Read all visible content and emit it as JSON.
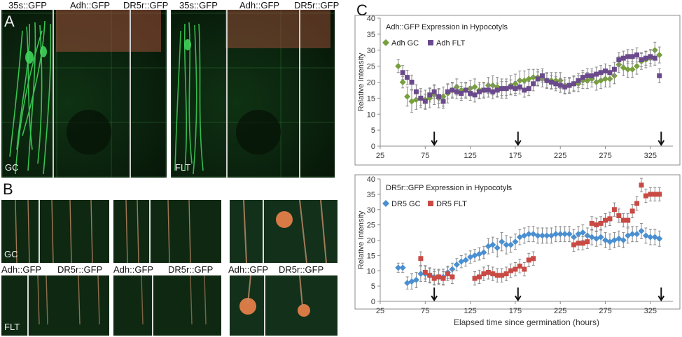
{
  "panelA": {
    "letter": "A",
    "labels": [
      "35s::GFP",
      "Adh::GFP",
      "DR5r::GFP",
      "35s::GFP",
      "Adh::GFP",
      "DR5r::GFP"
    ],
    "tag_left": "GC",
    "tag_right": "FLT"
  },
  "panelB": {
    "letter": "B",
    "tag_gc": "GC",
    "tag_flt": "FLT",
    "labels": [
      "Adh::GFP",
      "DR5r::GFP",
      "Adh::GFP",
      "DR5r::GFP",
      "Adh::GFP",
      "DR5r::GFP"
    ]
  },
  "panelC": {
    "letter": "C"
  },
  "chart_data": [
    {
      "type": "scatter",
      "title": "Adh::GFP Expression in Hypocotyls",
      "ylabel": "Relative Intensity",
      "xlabel": "",
      "xlim": [
        25,
        350
      ],
      "ylim": [
        0,
        40
      ],
      "xticks": [
        25,
        75,
        125,
        175,
        225,
        275,
        325
      ],
      "yticks": [
        0,
        5,
        10,
        15,
        20,
        25,
        30,
        35,
        40
      ],
      "arrows_x": [
        85,
        178,
        337
      ],
      "legend": "top-left",
      "series": [
        {
          "name": "Adh GC",
          "color": "#77a03c",
          "marker": "diamond",
          "x": [
            45,
            50,
            55,
            60,
            65,
            70,
            75,
            80,
            85,
            90,
            95,
            100,
            105,
            110,
            115,
            120,
            125,
            130,
            135,
            140,
            145,
            150,
            155,
            160,
            165,
            170,
            175,
            180,
            185,
            190,
            195,
            200,
            205,
            210,
            215,
            220,
            225,
            230,
            235,
            240,
            245,
            250,
            255,
            260,
            265,
            270,
            275,
            280,
            285,
            290,
            295,
            300,
            305,
            310,
            315,
            320,
            325,
            330,
            335
          ],
          "y": [
            25,
            20,
            15.5,
            14,
            14.5,
            15,
            14.5,
            15,
            16,
            15,
            15.5,
            16.5,
            17.5,
            18.5,
            17.5,
            17.5,
            18,
            18.5,
            17.5,
            17.5,
            19,
            19,
            18.5,
            18,
            18,
            19,
            19.5,
            20.5,
            20.5,
            21,
            21.5,
            21.5,
            21,
            20.5,
            20.5,
            20.5,
            20.5,
            19,
            19,
            19.5,
            19.5,
            20.5,
            20.5,
            21,
            20,
            20.5,
            21,
            21,
            22,
            25.5,
            24.5,
            24,
            24,
            25,
            26.5,
            27,
            27.5,
            30,
            28.5
          ],
          "err": [
            2,
            1.8,
            3,
            3.5,
            3,
            3,
            3,
            3,
            3,
            3,
            3,
            3,
            2.5,
            2.5,
            2.5,
            2.5,
            2.5,
            2.5,
            2.5,
            2.5,
            2.5,
            3,
            3,
            3,
            3,
            3,
            3,
            3,
            3,
            3,
            2.5,
            2.5,
            2.5,
            2.5,
            2.5,
            2.5,
            2.5,
            2.5,
            2.5,
            2.5,
            2.5,
            2.5,
            2.5,
            2.5,
            2.5,
            2.5,
            2.5,
            2.5,
            2.5,
            2.5,
            2.5,
            2.5,
            2.5,
            2.5,
            2.5,
            2.5,
            2.5,
            2.5,
            2.5
          ]
        },
        {
          "name": "Adh FLT",
          "color": "#6b4a8c",
          "marker": "square",
          "x": [
            50,
            55,
            60,
            65,
            70,
            75,
            80,
            85,
            90,
            95,
            100,
            105,
            110,
            115,
            120,
            125,
            130,
            135,
            140,
            145,
            150,
            155,
            160,
            165,
            170,
            175,
            180,
            185,
            190,
            195,
            200,
            205,
            210,
            215,
            220,
            225,
            230,
            235,
            240,
            245,
            250,
            255,
            260,
            265,
            270,
            275,
            280,
            285,
            290,
            295,
            300,
            305,
            310,
            315,
            320,
            325,
            330,
            335
          ],
          "y": [
            23,
            21.5,
            20,
            17,
            15,
            14,
            16,
            17,
            15.5,
            14,
            17,
            17.5,
            17,
            16.5,
            17.5,
            16.5,
            16,
            17,
            17.5,
            17.5,
            17,
            17.5,
            18,
            18,
            18.5,
            18,
            18.5,
            17.5,
            18,
            19.5,
            21,
            22,
            20.5,
            20,
            19.5,
            19,
            18.5,
            19,
            19.5,
            20.5,
            21.5,
            22,
            22,
            22.5,
            23,
            23.5,
            23,
            24,
            27,
            27.5,
            28,
            28,
            28.5,
            27,
            27.5,
            28,
            27.5,
            22
          ]
        }
      ]
    },
    {
      "type": "scatter",
      "title": "DR5r::GFP Expression in Hypocotyls",
      "ylabel": "Relative Intensity",
      "xlabel": "Elapsed time since germination (hours)",
      "xlim": [
        25,
        350
      ],
      "ylim": [
        0,
        40
      ],
      "xticks": [
        25,
        75,
        125,
        175,
        225,
        275,
        325
      ],
      "yticks": [
        0,
        5,
        10,
        15,
        20,
        25,
        30,
        35,
        40
      ],
      "arrows_x": [
        85,
        178,
        337
      ],
      "legend": "top-left",
      "series": [
        {
          "name": "DR5 GC",
          "color": "#4a8fd0",
          "marker": "diamond",
          "x": [
            45,
            50,
            55,
            60,
            65,
            70,
            75,
            80,
            85,
            90,
            95,
            100,
            105,
            110,
            115,
            120,
            125,
            130,
            135,
            140,
            145,
            150,
            155,
            160,
            165,
            170,
            175,
            180,
            185,
            190,
            195,
            200,
            205,
            210,
            215,
            220,
            225,
            230,
            235,
            240,
            245,
            250,
            255,
            260,
            265,
            270,
            275,
            280,
            285,
            290,
            295,
            300,
            305,
            310,
            315,
            320,
            325,
            330,
            335
          ],
          "y": [
            11,
            11,
            6,
            6.5,
            7,
            9,
            9,
            8.5,
            8,
            8,
            8,
            9.5,
            10.5,
            12,
            13,
            13.5,
            14.5,
            15,
            15.5,
            16,
            18,
            18.5,
            17.5,
            19.5,
            18.5,
            18.5,
            19.5,
            21,
            21.5,
            22,
            22,
            21.5,
            21.5,
            21.5,
            21.5,
            22,
            22,
            22,
            22,
            21,
            22,
            22.5,
            21.5,
            21,
            20.5,
            21,
            20,
            19.5,
            20,
            20.5,
            20,
            21.5,
            22,
            22,
            23,
            21.5,
            21,
            21,
            20.5
          ],
          "err": [
            1.5,
            1.5,
            2,
            2.5,
            2.5,
            2.5,
            2.5,
            2.5,
            2.5,
            2.5,
            2.5,
            2,
            2,
            2,
            2,
            2,
            2,
            2,
            2,
            2,
            2.5,
            2.5,
            3,
            3,
            3,
            2.5,
            2.5,
            2.5,
            2.5,
            2.5,
            2.5,
            2.5,
            2.5,
            2.5,
            2.5,
            2.5,
            2.5,
            2.5,
            2.5,
            2.5,
            2.5,
            2.5,
            2.5,
            2.5,
            2.5,
            2.5,
            2.5,
            2.5,
            2.5,
            2.5,
            2.5,
            2.5,
            2.5,
            2.5,
            2.5,
            2.5,
            2.5,
            2.5,
            2.5
          ]
        },
        {
          "name": "DR5 FLT",
          "color": "#c94a44",
          "marker": "square",
          "x": [
            70,
            75,
            80,
            85,
            90,
            95,
            100,
            105,
            130,
            135,
            140,
            145,
            150,
            155,
            160,
            165,
            170,
            175,
            180,
            185,
            190,
            195,
            240,
            245,
            250,
            255,
            260,
            265,
            270,
            275,
            280,
            285,
            290,
            295,
            300,
            305,
            310,
            315,
            320,
            325,
            330,
            335
          ],
          "y": [
            14,
            9.5,
            8.5,
            7.5,
            8,
            7.5,
            9,
            8,
            7.5,
            8,
            9,
            9.5,
            9,
            8.5,
            8.5,
            9,
            10,
            10.5,
            11.5,
            10.5,
            13.5,
            14,
            18.5,
            19,
            19,
            19.5,
            25.5,
            25,
            25.5,
            26.5,
            27,
            30,
            28,
            26.5,
            26.5,
            29.5,
            32,
            38,
            34.5,
            35,
            35,
            35
          ]
        }
      ]
    }
  ]
}
